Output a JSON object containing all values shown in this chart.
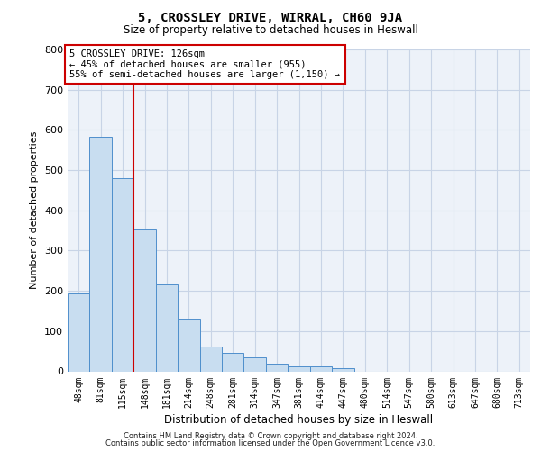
{
  "title1": "5, CROSSLEY DRIVE, WIRRAL, CH60 9JA",
  "title2": "Size of property relative to detached houses in Heswall",
  "xlabel": "Distribution of detached houses by size in Heswall",
  "ylabel": "Number of detached properties",
  "categories": [
    "48sqm",
    "81sqm",
    "115sqm",
    "148sqm",
    "181sqm",
    "214sqm",
    "248sqm",
    "281sqm",
    "314sqm",
    "347sqm",
    "381sqm",
    "414sqm",
    "447sqm",
    "480sqm",
    "514sqm",
    "547sqm",
    "580sqm",
    "613sqm",
    "647sqm",
    "680sqm",
    "713sqm"
  ],
  "values": [
    193,
    583,
    480,
    352,
    215,
    130,
    62,
    45,
    35,
    20,
    12,
    12,
    8,
    0,
    0,
    0,
    0,
    0,
    0,
    0,
    0
  ],
  "bar_color": "#c8ddf0",
  "bar_edge_color": "#4f8fcc",
  "grid_color": "#c8d4e6",
  "background_color": "#edf2f9",
  "annotation_line1": "5 CROSSLEY DRIVE: 126sqm",
  "annotation_line2": "← 45% of detached houses are smaller (955)",
  "annotation_line3": "55% of semi-detached houses are larger (1,150) →",
  "vline_color": "#cc0000",
  "annotation_box_edge": "#cc0000",
  "ylim_max": 800,
  "yticks": [
    0,
    100,
    200,
    300,
    400,
    500,
    600,
    700,
    800
  ],
  "footer1": "Contains HM Land Registry data © Crown copyright and database right 2024.",
  "footer2": "Contains public sector information licensed under the Open Government Licence v3.0."
}
